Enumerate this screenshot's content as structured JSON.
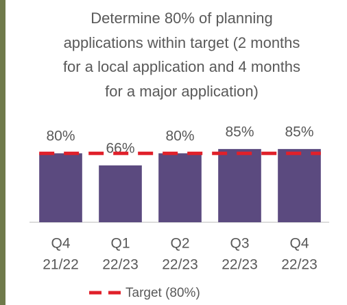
{
  "chart_data": {
    "type": "bar",
    "title": "Determine 80% of planning applications within target (2 months for a local application and 4 months for a major application)",
    "categories": [
      [
        "Q4",
        "21/22"
      ],
      [
        "Q1",
        "22/23"
      ],
      [
        "Q2",
        "22/23"
      ],
      [
        "Q3",
        "22/23"
      ],
      [
        "Q4",
        "22/23"
      ]
    ],
    "values": [
      80,
      66,
      80,
      85,
      85
    ],
    "value_labels": [
      "80%",
      "66%",
      "80%",
      "85%",
      "85%"
    ],
    "color": "#5b4a7f",
    "ylim": [
      0,
      100
    ],
    "target": {
      "name": "Target (80%)",
      "color": "#e0202a",
      "values": [
        80,
        80,
        80,
        80,
        80
      ]
    }
  }
}
